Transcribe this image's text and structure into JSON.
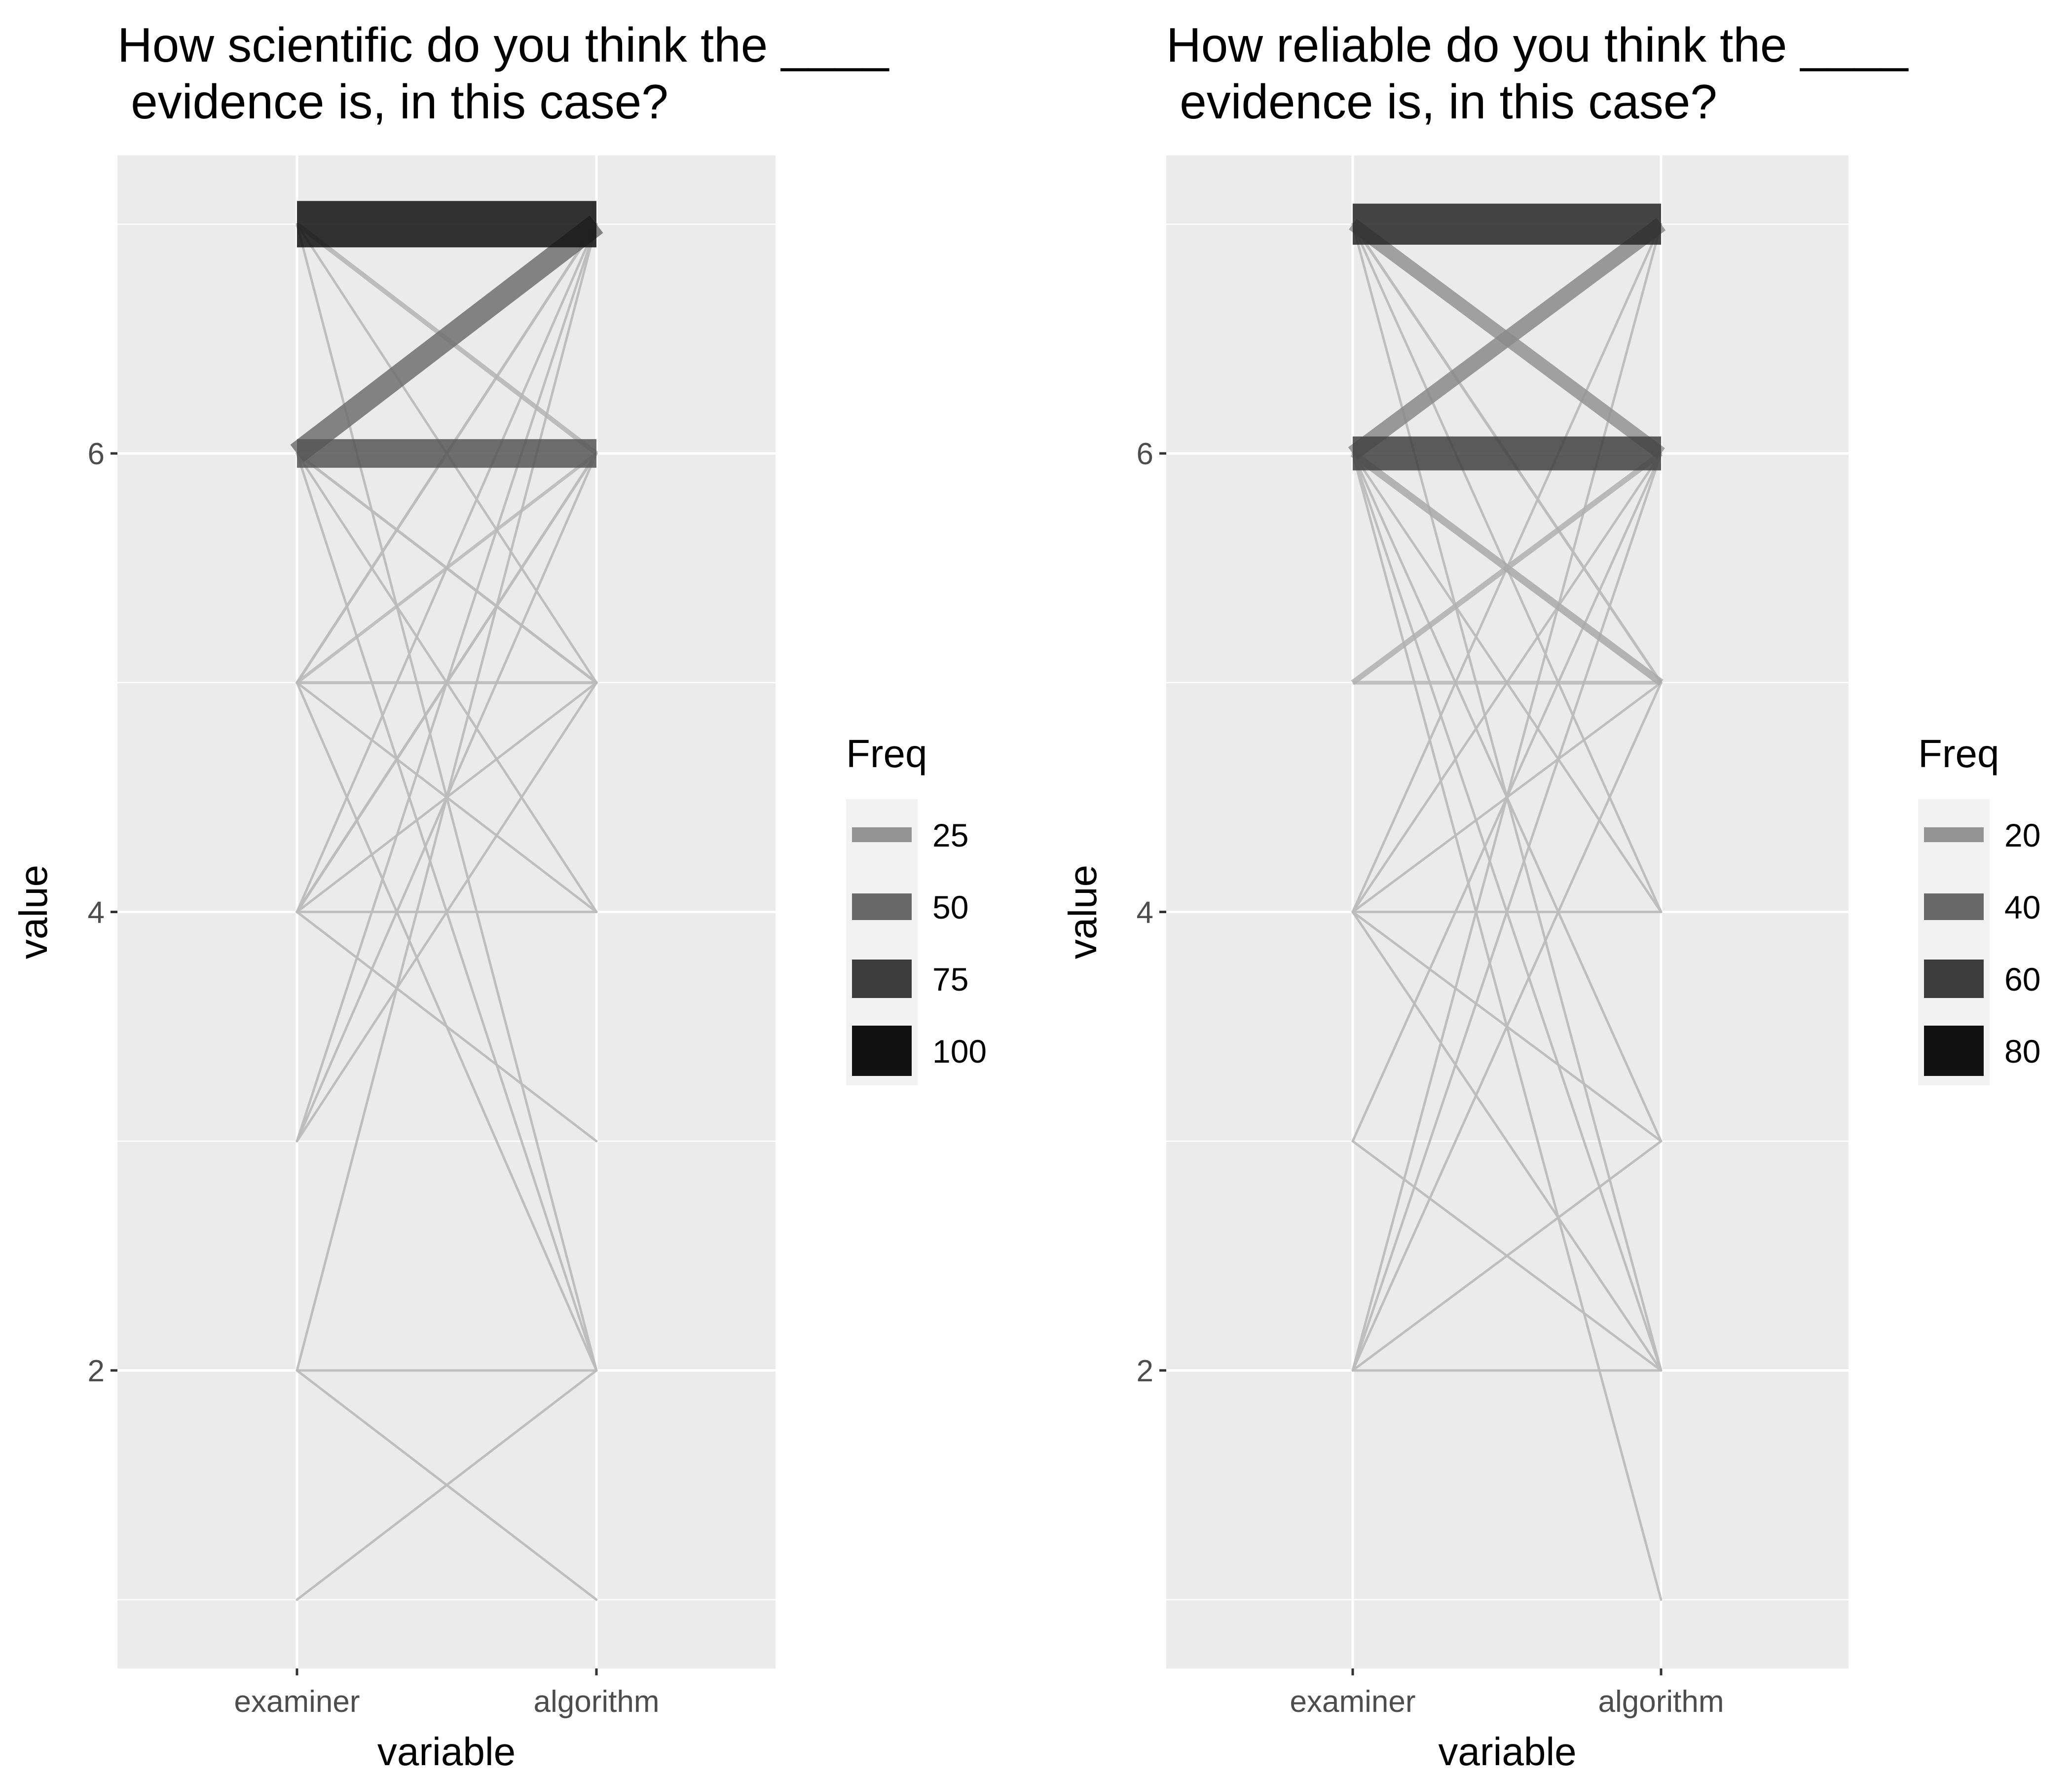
{
  "chart_data": [
    {
      "type": "line",
      "title_lines": [
        "How scientific do you think the ____",
        " evidence is, in this case?"
      ],
      "xlabel": "variable",
      "ylabel": "value",
      "categories": [
        "examiner",
        "algorithm"
      ],
      "ylim": [
        0.7,
        7.3
      ],
      "yticks": [
        2,
        4,
        6
      ],
      "grid": true,
      "legend": {
        "title": "Freq",
        "placement": "right",
        "entries": [
          {
            "label": "25",
            "freq": 25
          },
          {
            "label": "50",
            "freq": 50
          },
          {
            "label": "75",
            "freq": 75
          },
          {
            "label": "100",
            "freq": 100
          }
        ]
      },
      "segments": [
        {
          "from": 7,
          "to": 7,
          "freq": 100
        },
        {
          "from": 6,
          "to": 7,
          "freq": 45
        },
        {
          "from": 6,
          "to": 6,
          "freq": 60
        },
        {
          "from": 7,
          "to": 6,
          "freq": 6
        },
        {
          "from": 7,
          "to": 5,
          "freq": 1
        },
        {
          "from": 7,
          "to": 2,
          "freq": 1
        },
        {
          "from": 6,
          "to": 5,
          "freq": 2
        },
        {
          "from": 6,
          "to": 4,
          "freq": 1
        },
        {
          "from": 6,
          "to": 2,
          "freq": 1
        },
        {
          "from": 5,
          "to": 7,
          "freq": 2
        },
        {
          "from": 5,
          "to": 6,
          "freq": 3
        },
        {
          "from": 5,
          "to": 5,
          "freq": 2
        },
        {
          "from": 5,
          "to": 4,
          "freq": 1
        },
        {
          "from": 5,
          "to": 2,
          "freq": 1
        },
        {
          "from": 4,
          "to": 7,
          "freq": 1
        },
        {
          "from": 4,
          "to": 6,
          "freq": 2
        },
        {
          "from": 4,
          "to": 5,
          "freq": 1
        },
        {
          "from": 4,
          "to": 4,
          "freq": 1
        },
        {
          "from": 4,
          "to": 3,
          "freq": 1
        },
        {
          "from": 3,
          "to": 7,
          "freq": 1
        },
        {
          "from": 3,
          "to": 6,
          "freq": 1
        },
        {
          "from": 3,
          "to": 5,
          "freq": 1
        },
        {
          "from": 2,
          "to": 7,
          "freq": 1
        },
        {
          "from": 2,
          "to": 2,
          "freq": 1
        },
        {
          "from": 2,
          "to": 1,
          "freq": 1
        },
        {
          "from": 1,
          "to": 2,
          "freq": 1
        }
      ]
    },
    {
      "type": "line",
      "title_lines": [
        "How reliable do you think the ____",
        " evidence is, in this case?"
      ],
      "xlabel": "variable",
      "ylabel": "value",
      "categories": [
        "examiner",
        "algorithm"
      ],
      "ylim": [
        0.7,
        7.3
      ],
      "yticks": [
        2,
        4,
        6
      ],
      "grid": true,
      "legend": {
        "title": "Freq",
        "placement": "right",
        "entries": [
          {
            "label": "20",
            "freq": 20
          },
          {
            "label": "40",
            "freq": 40
          },
          {
            "label": "60",
            "freq": 60
          },
          {
            "label": "80",
            "freq": 80
          }
        ]
      },
      "segments": [
        {
          "from": 7,
          "to": 7,
          "freq": 88
        },
        {
          "from": 6,
          "to": 6,
          "freq": 72
        },
        {
          "from": 6,
          "to": 7,
          "freq": 30
        },
        {
          "from": 7,
          "to": 6,
          "freq": 25
        },
        {
          "from": 7,
          "to": 5,
          "freq": 2
        },
        {
          "from": 7,
          "to": 4,
          "freq": 1
        },
        {
          "from": 7,
          "to": 2,
          "freq": 1
        },
        {
          "from": 6,
          "to": 5,
          "freq": 12
        },
        {
          "from": 6,
          "to": 4,
          "freq": 1
        },
        {
          "from": 6,
          "to": 3,
          "freq": 1
        },
        {
          "from": 6,
          "to": 2,
          "freq": 1
        },
        {
          "from": 6,
          "to": 1,
          "freq": 1
        },
        {
          "from": 5,
          "to": 6,
          "freq": 8
        },
        {
          "from": 5,
          "to": 5,
          "freq": 4
        },
        {
          "from": 4,
          "to": 7,
          "freq": 1
        },
        {
          "from": 4,
          "to": 6,
          "freq": 1
        },
        {
          "from": 4,
          "to": 5,
          "freq": 1
        },
        {
          "from": 4,
          "to": 4,
          "freq": 1
        },
        {
          "from": 4,
          "to": 3,
          "freq": 1
        },
        {
          "from": 4,
          "to": 2,
          "freq": 1
        },
        {
          "from": 3,
          "to": 6,
          "freq": 1
        },
        {
          "from": 3,
          "to": 2,
          "freq": 1
        },
        {
          "from": 2,
          "to": 7,
          "freq": 1
        },
        {
          "from": 2,
          "to": 6,
          "freq": 1
        },
        {
          "from": 2,
          "to": 5,
          "freq": 1
        },
        {
          "from": 2,
          "to": 3,
          "freq": 1
        },
        {
          "from": 2,
          "to": 2,
          "freq": 1
        }
      ]
    }
  ]
}
